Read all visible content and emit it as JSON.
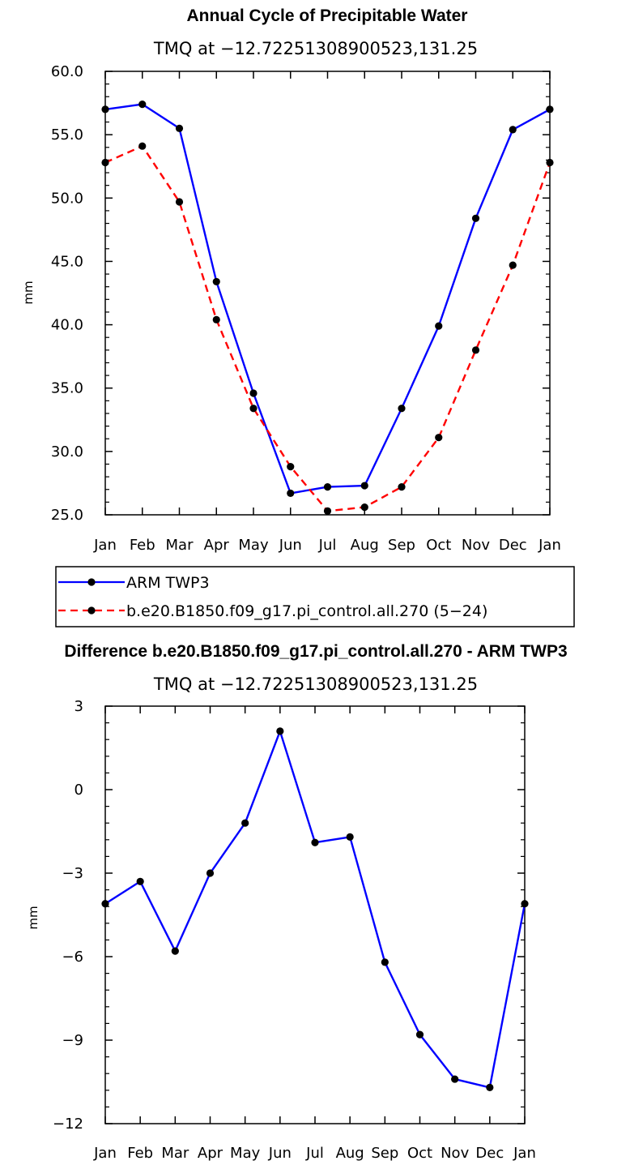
{
  "chart_data": [
    {
      "type": "line",
      "title": "Annual Cycle of Precipitable Water",
      "subtitle": "TMQ at −12.72251308900523,131.25",
      "xlabel": "",
      "ylabel": "mm",
      "categories": [
        "Jan",
        "Feb",
        "Mar",
        "Apr",
        "May",
        "Jun",
        "Jul",
        "Aug",
        "Sep",
        "Oct",
        "Nov",
        "Dec",
        "Jan"
      ],
      "ylim": [
        25,
        60
      ],
      "yticks": [
        "25.0",
        "30.0",
        "35.0",
        "40.0",
        "45.0",
        "50.0",
        "55.0",
        "60.0"
      ],
      "grid": false,
      "legend_position": "below",
      "series": [
        {
          "name": "ARM TWP3",
          "color": "#0000ff",
          "dash": "solid",
          "values": [
            57.0,
            57.4,
            55.5,
            43.4,
            34.6,
            26.7,
            27.2,
            27.3,
            33.4,
            39.9,
            48.4,
            55.4,
            57.0
          ]
        },
        {
          "name": "b.e20.B1850.f09_g17.pi_control.all.270 (5−24)",
          "color": "#ff0000",
          "dash": "dashed",
          "values": [
            52.8,
            54.1,
            49.7,
            40.4,
            33.4,
            28.8,
            25.3,
            25.6,
            27.2,
            31.1,
            38.0,
            44.7,
            52.8
          ]
        }
      ]
    },
    {
      "type": "line",
      "title": "Difference b.e20.B1850.f09_g17.pi_control.all.270 - ARM TWP3",
      "subtitle": "TMQ at −12.72251308900523,131.25",
      "xlabel": "",
      "ylabel": "mm",
      "categories": [
        "Jan",
        "Feb",
        "Mar",
        "Apr",
        "May",
        "Jun",
        "Jul",
        "Aug",
        "Sep",
        "Oct",
        "Nov",
        "Dec",
        "Jan"
      ],
      "ylim": [
        -12,
        3
      ],
      "yticks": [
        "−12",
        "−9",
        "−6",
        "−3",
        "0",
        "3"
      ],
      "grid": false,
      "series": [
        {
          "color": "#0000ff",
          "dash": "solid",
          "values": [
            -4.1,
            -3.3,
            -5.8,
            -3.0,
            -1.2,
            2.1,
            -1.9,
            -1.7,
            -6.2,
            -8.8,
            -10.4,
            -10.7,
            -4.1
          ]
        }
      ]
    }
  ]
}
